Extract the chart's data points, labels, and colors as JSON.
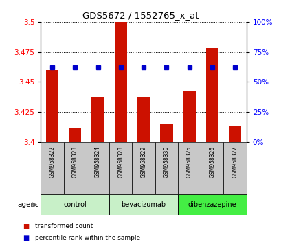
{
  "title": "GDS5672 / 1552765_x_at",
  "samples": [
    "GSM958322",
    "GSM958323",
    "GSM958324",
    "GSM958328",
    "GSM958329",
    "GSM958330",
    "GSM958325",
    "GSM958326",
    "GSM958327"
  ],
  "bar_values": [
    3.46,
    3.412,
    3.437,
    3.5,
    3.437,
    3.415,
    3.443,
    3.478,
    3.414
  ],
  "percentile_values": [
    3.462,
    3.462,
    3.462,
    3.462,
    3.462,
    3.462,
    3.462,
    3.462,
    3.462
  ],
  "groups": [
    {
      "label": "control",
      "indices": [
        0,
        1,
        2
      ],
      "color": "#c8f0c8"
    },
    {
      "label": "bevacizumab",
      "indices": [
        3,
        4,
        5
      ],
      "color": "#c8f0c8"
    },
    {
      "label": "dibenzazepine",
      "indices": [
        6,
        7,
        8
      ],
      "color": "#44ee44"
    }
  ],
  "ylim_left": [
    3.4,
    3.5
  ],
  "ylim_right": [
    0,
    100
  ],
  "yticks_left": [
    3.4,
    3.425,
    3.45,
    3.475,
    3.5
  ],
  "yticks_right": [
    0,
    25,
    50,
    75,
    100
  ],
  "bar_color": "#cc1100",
  "dot_color": "#0000cc",
  "bar_width": 0.55,
  "bar_baseline": 3.4,
  "agent_label": "agent",
  "legend_bar": "transformed count",
  "legend_dot": "percentile rank within the sample",
  "sample_box_color": "#c8c8c8",
  "grid_color": "black"
}
